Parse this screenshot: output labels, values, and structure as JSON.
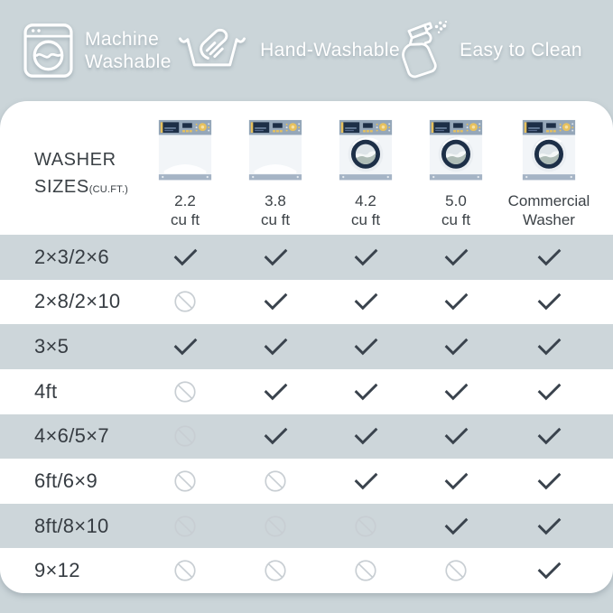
{
  "colors": {
    "band_bg": "#cbd5d9",
    "stripe_bg": "#cdd6da",
    "panel_bg": "#ffffff",
    "feature_fg": "#ffffff",
    "text_dark": "#3a4045",
    "check": "#3a434d",
    "no_symbol": "#c8ced3",
    "washer_panel": "#95a7b9",
    "washer_navy": "#1d2f47",
    "washer_gold": "#e7c15d",
    "washer_base": "#a5b4c5",
    "washer_body": "#f2f5f8"
  },
  "features": [
    {
      "icon": "washing-machine-icon",
      "label": "Machine Washable"
    },
    {
      "icon": "hand-wash-icon",
      "label": "Hand-Washable"
    },
    {
      "icon": "spray-bottle-icon",
      "label": "Easy to Clean"
    }
  ],
  "table": {
    "corner_title": {
      "line1": "WASHER",
      "line2": "SIZES",
      "unit": "(CU.FT.)"
    },
    "columns": [
      {
        "line1": "2.2",
        "line2": "cu ft",
        "washer_type": "top-load"
      },
      {
        "line1": "3.8",
        "line2": "cu ft",
        "washer_type": "top-load"
      },
      {
        "line1": "4.2",
        "line2": "cu ft",
        "washer_type": "front-load"
      },
      {
        "line1": "5.0",
        "line2": "cu ft",
        "washer_type": "front-load"
      },
      {
        "line1": "Commercial",
        "line2": "Washer",
        "washer_type": "front-load"
      }
    ],
    "rows": [
      {
        "label": "2×3/2×6",
        "cells": [
          "yes",
          "yes",
          "yes",
          "yes",
          "yes"
        ]
      },
      {
        "label": "2×8/2×10",
        "cells": [
          "no",
          "yes",
          "yes",
          "yes",
          "yes"
        ]
      },
      {
        "label": "3×5",
        "cells": [
          "yes",
          "yes",
          "yes",
          "yes",
          "yes"
        ]
      },
      {
        "label": "4ft",
        "cells": [
          "no",
          "yes",
          "yes",
          "yes",
          "yes"
        ]
      },
      {
        "label": "4×6/5×7",
        "cells": [
          "no",
          "yes",
          "yes",
          "yes",
          "yes"
        ]
      },
      {
        "label": "6ft/6×9",
        "cells": [
          "no",
          "no",
          "yes",
          "yes",
          "yes"
        ]
      },
      {
        "label": "8ft/8×10",
        "cells": [
          "no",
          "no",
          "no",
          "yes",
          "yes"
        ]
      },
      {
        "label": "9×12",
        "cells": [
          "no",
          "no",
          "no",
          "no",
          "yes"
        ]
      }
    ]
  },
  "chart_data": {
    "type": "table",
    "title": "WASHER SIZES (CU.FT.)",
    "columns": [
      "2.2 cu ft",
      "3.8 cu ft",
      "4.2 cu ft",
      "5.0 cu ft",
      "Commercial Washer"
    ],
    "rows": [
      "2×3/2×6",
      "2×8/2×10",
      "3×5",
      "4ft",
      "4×6/5×7",
      "6ft/6×9",
      "8ft/8×10",
      "9×12"
    ],
    "values": [
      [
        true,
        true,
        true,
        true,
        true
      ],
      [
        false,
        true,
        true,
        true,
        true
      ],
      [
        true,
        true,
        true,
        true,
        true
      ],
      [
        false,
        true,
        true,
        true,
        true
      ],
      [
        false,
        true,
        true,
        true,
        true
      ],
      [
        false,
        false,
        true,
        true,
        true
      ],
      [
        false,
        false,
        false,
        true,
        true
      ],
      [
        false,
        false,
        false,
        false,
        true
      ]
    ]
  }
}
